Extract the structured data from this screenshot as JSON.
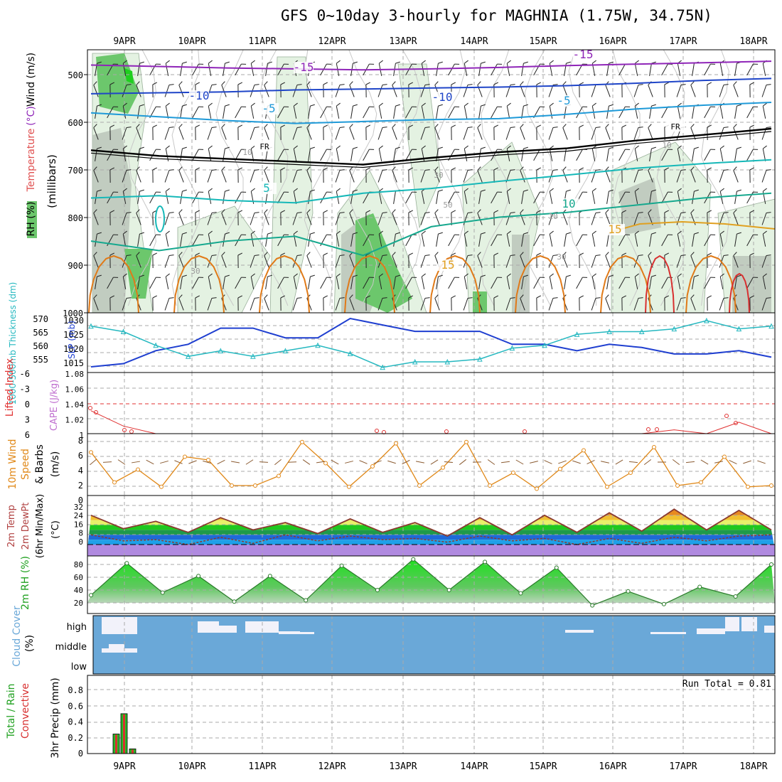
{
  "title": "GFS 0~10day 3-hourly for MAGHNIA (1.75W, 34.75N)",
  "colors": {
    "rh_green": "#6cc76c",
    "rh_light": "#e4f2e2",
    "grey_shade": "#b8c2b8",
    "temp_purple": "#8f25b8",
    "temp_blue_dark": "#1f45c8",
    "temp_blue": "#1f9ad8",
    "temp_cyan": "#16b8b8",
    "temp_teal": "#16a88e",
    "temp_orange": "#e0a020",
    "temp_darkorange": "#e07a18",
    "temp_red": "#d83030",
    "thickness": "#25b8c0",
    "slp": "#1f3fd0",
    "li": "#e03030",
    "wind": "#e08818",
    "cloud": "#6aa8d8",
    "precip_green": "#29b829"
  },
  "chart_data": [
    {
      "type": "contour",
      "name": "upper_air",
      "days": [
        "9APR",
        "10APR",
        "11APR",
        "12APR",
        "13APR",
        "14APR",
        "15APR",
        "16APR",
        "17APR",
        "18APR"
      ],
      "y_axis_title": "(millibars)",
      "pressure_ticks": [
        "500",
        "600",
        "700",
        "800",
        "900",
        "1000"
      ],
      "legend": {
        "rh": "RH (%)",
        "temperature": "Temperature",
        "celsius": "(°C)",
        "wind": "Wind (m/s)"
      },
      "isotherm_labels": [
        "-15",
        "-15",
        "-10",
        "-10",
        "-5",
        "-5",
        "FR",
        "FR",
        "5",
        "10",
        "15",
        "15"
      ],
      "rh_labels": [
        "10",
        "10",
        "30",
        "30",
        "30",
        "50",
        "10"
      ],
      "isotherms": [
        {
          "label": "-15",
          "color": "#8f25b8",
          "pressure": [
            482,
            485,
            488,
            490,
            492,
            490,
            487,
            483,
            480,
            477,
            474
          ]
        },
        {
          "label": "-10",
          "color": "#1f45c8",
          "pressure": [
            542,
            540,
            538,
            534,
            532,
            530,
            528,
            525,
            520,
            514,
            510
          ]
        },
        {
          "label": "-5",
          "color": "#1f9ad8",
          "pressure": [
            582,
            590,
            598,
            604,
            600,
            596,
            594,
            585,
            574,
            566,
            560
          ]
        },
        {
          "label": "FR",
          "color": "#000000",
          "pressure": [
            660,
            672,
            678,
            684,
            690,
            676,
            664,
            656,
            640,
            628,
            615
          ]
        },
        {
          "label": "5",
          "color": "#16b8b8",
          "pressure": [
            760,
            755,
            765,
            770,
            750,
            740,
            725,
            712,
            698,
            688,
            680
          ]
        },
        {
          "label": "10",
          "color": "#16a88e",
          "pressure": [
            850,
            870,
            850,
            840,
            880,
            820,
            800,
            790,
            775,
            760,
            750
          ]
        }
      ]
    },
    {
      "type": "line",
      "name": "thickness_slp",
      "ylabel_left": "1000-500mb Thickness (dm)",
      "ylabel_right": "SLP (mb)",
      "left_ticks": [
        "570",
        "565",
        "560",
        "555"
      ],
      "right_ticks": [
        "1030",
        "1025",
        "1020",
        "1015"
      ],
      "slp": [
        1015,
        1016,
        1020,
        1022,
        1027,
        1027,
        1024,
        1024,
        1030,
        1028,
        1026,
        1026,
        1026,
        1022,
        1022,
        1020,
        1022,
        1021,
        1019,
        1019,
        1020,
        1018
      ],
      "thickness": [
        568,
        566,
        561,
        557,
        559,
        557,
        559,
        561,
        558,
        553,
        555,
        555,
        556,
        560,
        561,
        565,
        566,
        566,
        567,
        570,
        567,
        568
      ]
    },
    {
      "type": "line",
      "name": "instability",
      "ylabel_left": "Lifted Index",
      "ylabel_right": "CAPE (J/kg)",
      "li_ticks": [
        "-6",
        "-3",
        "0",
        "3",
        "6"
      ],
      "cape_ticks": [
        "1.08",
        "1.06",
        "1.04",
        "1.02",
        "1"
      ],
      "cape": [
        1.03,
        1.01,
        1.0,
        1.0,
        1.0,
        1.0,
        1.0,
        1.0,
        1.0,
        1.0,
        1.0,
        1.0,
        1.0,
        1.0,
        1.0,
        1.0,
        1.0,
        1.0,
        1.005,
        1.0,
        1.015,
        1.0
      ]
    },
    {
      "type": "line",
      "name": "wind10m",
      "ylabel": "10m Wind Speed & Barbs (m/s)",
      "ticks": [
        "8",
        "6",
        "4",
        "2",
        "0"
      ],
      "speed": [
        6.2,
        1.5,
        3.5,
        0.8,
        5.5,
        5.0,
        1.0,
        1.0,
        2.5,
        7.8,
        4.5,
        0.8,
        4.0,
        7.6,
        1.0,
        3.8,
        7.8,
        1.0,
        3.0,
        0.5,
        3.6,
        6.5,
        0.8,
        3.0,
        7.0,
        1.0,
        1.5,
        5.5,
        0.8,
        1.0
      ]
    },
    {
      "type": "line",
      "name": "temp2m",
      "ylabel": "2m Temp / 2m DewPt (6hr Min/Max) (°C)",
      "ticks": [
        "32",
        "24",
        "16",
        "8",
        "0"
      ],
      "temperature": [
        24,
        13,
        19,
        10,
        22,
        12,
        18,
        9,
        21,
        10,
        18,
        7,
        22,
        8,
        24,
        10,
        26,
        11,
        29,
        12,
        28,
        12
      ],
      "dewpoint": [
        8,
        3,
        4,
        0,
        6,
        1,
        8,
        3,
        7,
        4,
        5,
        2,
        7,
        3,
        5,
        0,
        5,
        1,
        6,
        3,
        7,
        8
      ]
    },
    {
      "type": "area",
      "name": "rh2m",
      "ylabel": "2m RH (%)",
      "ticks": [
        "80",
        "60",
        "40",
        "20"
      ],
      "rh": [
        32,
        82,
        36,
        62,
        22,
        62,
        24,
        78,
        40,
        88,
        40,
        84,
        35,
        75,
        16,
        38,
        18,
        45,
        30,
        80
      ]
    },
    {
      "type": "bar",
      "name": "cloud",
      "ylabel": "Cloud Cover (%)",
      "levels": [
        "high",
        "middle",
        "low"
      ]
    },
    {
      "type": "bar",
      "name": "precip",
      "ylabel_a": "Total / Rain",
      "ylabel_b": "Convective",
      "ylabel_c": "3hr Precip (mm)",
      "ticks": [
        "0.8",
        "0.6",
        "0.4",
        "0.2",
        "0"
      ],
      "ylim": [
        0,
        0.9
      ],
      "run_total": "Run Total = 0.81",
      "bars": [
        0.25,
        0.51,
        0.06
      ]
    }
  ]
}
